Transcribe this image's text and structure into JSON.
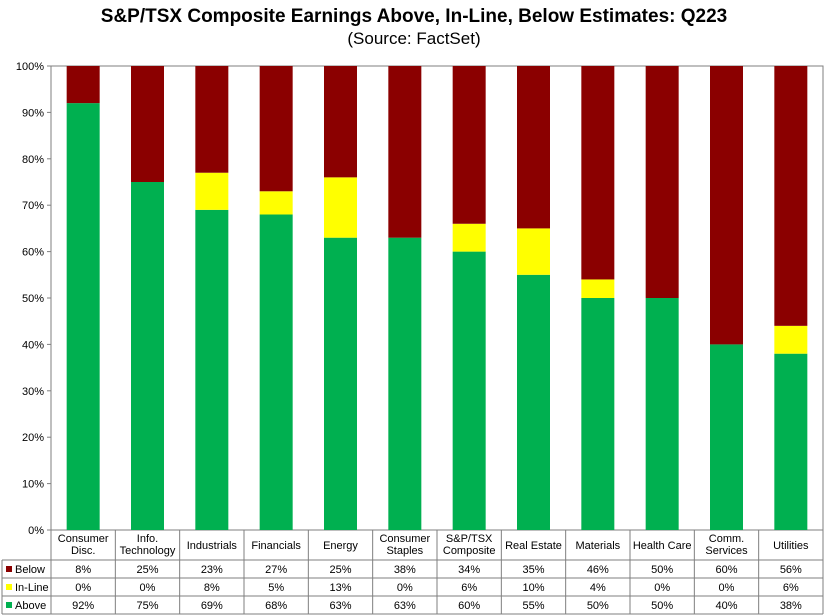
{
  "chart_data": {
    "type": "bar",
    "stacked": true,
    "title": "S&P/TSX Composite Earnings Above, In-Line, Below Estimates: Q223",
    "subtitle": "(Source: FactSet)",
    "ylim": [
      0,
      100
    ],
    "yticks": [
      "0%",
      "10%",
      "20%",
      "30%",
      "40%",
      "50%",
      "60%",
      "70%",
      "80%",
      "90%",
      "100%"
    ],
    "categories": [
      [
        "Consumer",
        "Disc."
      ],
      [
        "Info.",
        "Technology"
      ],
      [
        "Industrials"
      ],
      [
        "Financials"
      ],
      [
        "Energy"
      ],
      [
        "Consumer",
        "Staples"
      ],
      [
        "S&P/TSX",
        "Composite"
      ],
      [
        "Real Estate"
      ],
      [
        "Materials"
      ],
      [
        "Health Care"
      ],
      [
        "Comm.",
        "Services"
      ],
      [
        "Utilities"
      ]
    ],
    "series": [
      {
        "name": "Below",
        "color": "#8b0000",
        "values": [
          8,
          25,
          23,
          27,
          25,
          38,
          34,
          35,
          46,
          50,
          60,
          56
        ],
        "labels": [
          "8%",
          "25%",
          "23%",
          "27%",
          "25%",
          "38%",
          "34%",
          "35%",
          "46%",
          "50%",
          "60%",
          "56%"
        ]
      },
      {
        "name": "In-Line",
        "color": "#ffff00",
        "values": [
          0,
          0,
          8,
          5,
          13,
          0,
          6,
          10,
          4,
          0,
          0,
          6
        ],
        "labels": [
          "0%",
          "0%",
          "8%",
          "5%",
          "13%",
          "0%",
          "6%",
          "10%",
          "4%",
          "0%",
          "0%",
          "6%"
        ]
      },
      {
        "name": "Above",
        "color": "#00b050",
        "values": [
          92,
          75,
          69,
          68,
          63,
          63,
          60,
          55,
          50,
          50,
          40,
          38
        ],
        "labels": [
          "92%",
          "75%",
          "69%",
          "68%",
          "63%",
          "63%",
          "60%",
          "55%",
          "50%",
          "50%",
          "40%",
          "38%"
        ]
      }
    ]
  }
}
